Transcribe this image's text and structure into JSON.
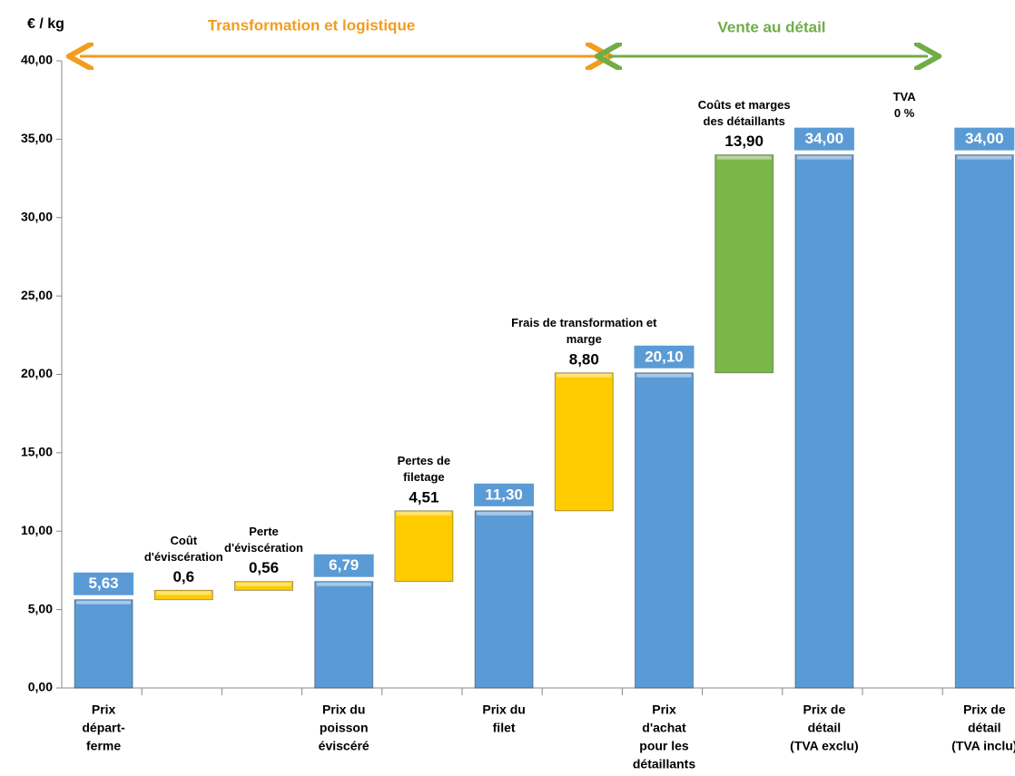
{
  "chart_data": {
    "type": "waterfall",
    "y_label": "€ / kg",
    "sections": [
      {
        "label": "Transformation et logistique",
        "color": "#f39c1e"
      },
      {
        "label": "Vente au détail",
        "color": "#70ad47"
      }
    ],
    "categories": [
      [
        "Prix",
        "départ-",
        "ferme"
      ],
      [
        "Coût",
        "d'éviscération"
      ],
      [
        "Perte",
        "d'éviscération"
      ],
      [
        "Prix du",
        "poisson",
        "éviscéré"
      ],
      [
        "Pertes de",
        "filetage"
      ],
      [
        "Prix du",
        "filet"
      ],
      [
        "Frais de transformation et",
        "marge"
      ],
      [
        "Prix",
        "d'achat",
        "pour les",
        "détaillants"
      ],
      [
        "Coûts et marges",
        "des détaillants"
      ],
      [
        "Prix de",
        "détail",
        "(TVA exclu)"
      ],
      [
        "TVA"
      ],
      [
        "Prix de",
        "détail",
        "(TVA inclu)"
      ]
    ],
    "kinds": [
      "total",
      "step",
      "step",
      "total",
      "step",
      "total",
      "step",
      "total",
      "step",
      "total",
      "step",
      "total"
    ],
    "values": [
      5.63,
      0.6,
      0.56,
      6.79,
      4.51,
      11.3,
      8.8,
      20.1,
      13.9,
      34,
      0,
      34
    ],
    "value_labels": [
      "5,63",
      "0,6",
      "0,56",
      "6,79",
      "4,51",
      "11,30",
      "8,80",
      "20,10",
      "13,90",
      "34,00",
      "0 %",
      "34,00"
    ],
    "colors": [
      "#5b9bd5",
      "#ffcc00",
      "#ffcc00",
      "#5b9bd5",
      "#ffcc00",
      "#5b9bd5",
      "#ffcc00",
      "#5b9bd5",
      "#7ab648",
      "#5b9bd5",
      "#7ab648",
      "#5b9bd5"
    ],
    "ylim": [
      0,
      40
    ],
    "yticks": [
      {
        "value": 0,
        "label": "0,00"
      },
      {
        "value": 5,
        "label": "5,00"
      },
      {
        "value": 10,
        "label": "10,00"
      },
      {
        "value": 15,
        "label": "15,00"
      },
      {
        "value": 20,
        "label": "20,00"
      },
      {
        "value": 25,
        "label": "25,00"
      },
      {
        "value": 30,
        "label": "30,00"
      },
      {
        "value": 35,
        "label": "35,00"
      },
      {
        "value": 40,
        "label": "40,00"
      }
    ]
  }
}
